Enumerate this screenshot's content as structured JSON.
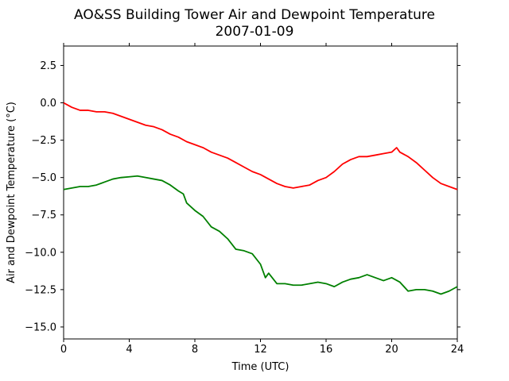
{
  "chart_data": {
    "type": "line",
    "title": "AO&SS Building Tower Air and Dewpoint Temperature",
    "subtitle": "2007-01-09",
    "xlabel": "Time (UTC)",
    "ylabel": "Air and Dewpoint Temperature (°C)",
    "xlim": [
      0,
      24
    ],
    "ylim": [
      -15.8,
      3.8
    ],
    "xticks": [
      0,
      4,
      8,
      12,
      16,
      20,
      24
    ],
    "yticks": [
      2.5,
      0.0,
      -2.5,
      -5.0,
      -7.5,
      -10.0,
      -12.5,
      -15.0
    ],
    "ytick_labels": [
      "2.5",
      "0.0",
      "−2.5",
      "−5.0",
      "−7.5",
      "−10.0",
      "−12.5",
      "−15.0"
    ],
    "grid": false,
    "series": [
      {
        "color": "#ff0000",
        "x": [
          0,
          0.5,
          1,
          1.5,
          2,
          2.5,
          3,
          3.5,
          4,
          4.5,
          5,
          5.5,
          6,
          6.5,
          7,
          7.5,
          8,
          8.5,
          9,
          9.5,
          10,
          10.5,
          11,
          11.5,
          12,
          12.5,
          13,
          13.5,
          14,
          14.5,
          15,
          15.5,
          16,
          16.5,
          17,
          17.5,
          18,
          18.5,
          19,
          19.5,
          20,
          20.3,
          20.5,
          21,
          21.5,
          22,
          22.5,
          23,
          23.5,
          24
        ],
        "y": [
          0.0,
          -0.3,
          -0.5,
          -0.5,
          -0.6,
          -0.6,
          -0.7,
          -0.9,
          -1.1,
          -1.3,
          -1.5,
          -1.6,
          -1.8,
          -2.1,
          -2.3,
          -2.6,
          -2.8,
          -3.0,
          -3.3,
          -3.5,
          -3.7,
          -4.0,
          -4.3,
          -4.6,
          -4.8,
          -5.1,
          -5.4,
          -5.6,
          -5.7,
          -5.6,
          -5.5,
          -5.2,
          -5.0,
          -4.6,
          -4.1,
          -3.8,
          -3.6,
          -3.6,
          -3.5,
          -3.4,
          -3.3,
          -3.0,
          -3.3,
          -3.6,
          -4.0,
          -4.5,
          -5.0,
          -5.4,
          -5.6,
          -5.8
        ]
      },
      {
        "color": "#008000",
        "x": [
          0,
          0.5,
          1,
          1.5,
          2,
          2.5,
          3,
          3.5,
          4,
          4.5,
          5,
          5.5,
          6,
          6.5,
          7,
          7.3,
          7.5,
          8,
          8.5,
          9,
          9.5,
          10,
          10.5,
          11,
          11.5,
          12,
          12.3,
          12.5,
          13,
          13.5,
          14,
          14.5,
          15,
          15.5,
          16,
          16.5,
          17,
          17.5,
          18,
          18.5,
          19,
          19.5,
          20,
          20.5,
          21,
          21.5,
          22,
          22.5,
          23,
          23.5,
          24
        ],
        "y": [
          -5.8,
          -5.7,
          -5.6,
          -5.6,
          -5.5,
          -5.3,
          -5.1,
          -5.0,
          -4.95,
          -4.9,
          -5.0,
          -5.1,
          -5.2,
          -5.5,
          -5.9,
          -6.1,
          -6.7,
          -7.2,
          -7.6,
          -8.3,
          -8.6,
          -9.1,
          -9.8,
          -9.9,
          -10.1,
          -10.8,
          -11.7,
          -11.4,
          -12.1,
          -12.1,
          -12.2,
          -12.2,
          -12.1,
          -12.0,
          -12.1,
          -12.3,
          -12.0,
          -11.8,
          -11.7,
          -11.5,
          -11.7,
          -11.9,
          -11.7,
          -12.0,
          -12.6,
          -12.5,
          -12.5,
          -12.6,
          -12.8,
          -12.6,
          -12.3
        ]
      }
    ]
  }
}
